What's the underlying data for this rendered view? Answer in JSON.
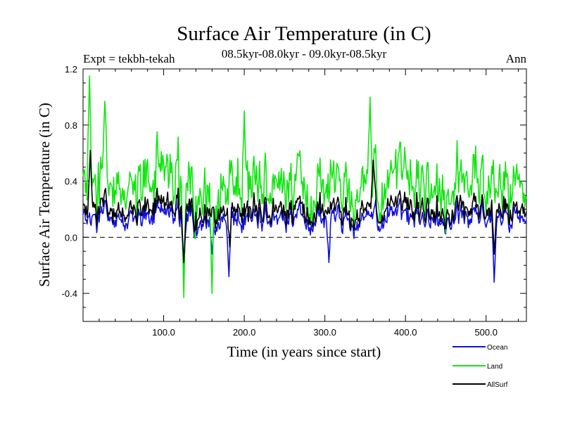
{
  "chart_data": {
    "type": "line",
    "title": "Surface Air Temperature (in C)",
    "subtitle_left": "Expt = tekbh-tekah",
    "subtitle_center": "08.5kyr-08.0kyr - 09.0kyr-08.5kyr",
    "subtitle_right": "Ann",
    "xlabel": "Time (in years since start)",
    "ylabel": "Surface Air Temperature (in C)",
    "xlim": [
      0,
      550
    ],
    "ylim": [
      -0.6,
      1.2
    ],
    "x_ticks": [
      100,
      200,
      300,
      400,
      500
    ],
    "x_tick_labels": [
      "100.0",
      "200.0",
      "300.0",
      "400.0",
      "500.0"
    ],
    "y_ticks": [
      -0.4,
      0.0,
      0.4,
      0.8,
      1.2
    ],
    "y_tick_labels": [
      "-0.4",
      "0.0",
      "0.4",
      "0.8",
      "1.2"
    ],
    "x_minor_step": 20,
    "y_minor_step": 0.1,
    "zero_line": true,
    "n_points": 551,
    "series": [
      {
        "name": "Ocean",
        "color": "#1010e0",
        "mean": 0.14,
        "noise": 0.08,
        "events": [
          [
            125,
            -0.25
          ],
          [
            181,
            -0.28
          ],
          [
            305,
            -0.18
          ],
          [
            510,
            -0.32
          ],
          [
            160,
            -0.12
          ]
        ]
      },
      {
        "name": "Land",
        "color": "#11e611",
        "mean": 0.38,
        "noise": 0.19,
        "events": [
          [
            8,
            1.15
          ],
          [
            125,
            -0.43
          ],
          [
            160,
            -0.4
          ],
          [
            356,
            1.0
          ],
          [
            27,
            0.97
          ],
          [
            200,
            0.9
          ]
        ]
      },
      {
        "name": "AllSurf",
        "color": "#000000",
        "mean": 0.2,
        "noise": 0.09,
        "events": [
          [
            9,
            0.62
          ],
          [
            125,
            -0.18
          ],
          [
            182,
            -0.07
          ],
          [
            360,
            0.55
          ],
          [
            510,
            -0.12
          ]
        ]
      }
    ]
  }
}
